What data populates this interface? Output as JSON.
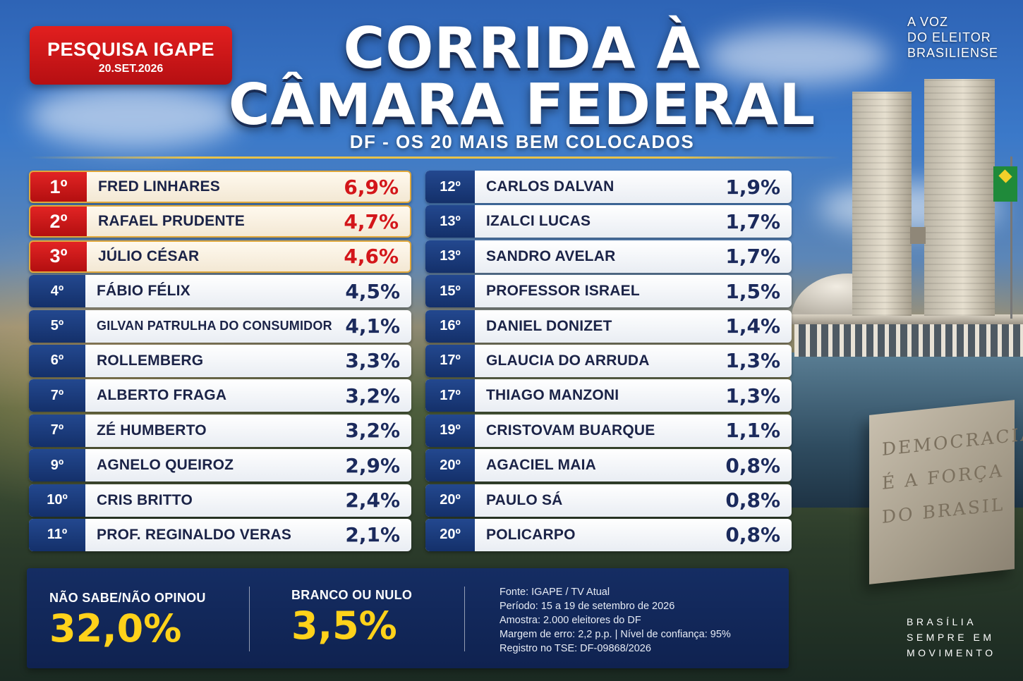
{
  "header": {
    "badge_title": "PESQUISA IGAPE",
    "badge_date": "20.SET.2026",
    "title_line1": "CORRIDA À",
    "title_line2": "CÂMARA FEDERAL",
    "subtitle": "DF - OS 20 MAIS BEM COLOCADOS",
    "slogan_lines": [
      "A VOZ",
      "DO ELEITOR",
      "BRASILIENSE"
    ]
  },
  "ranking_left": [
    {
      "rank": "1º",
      "name": "FRED LINHARES",
      "pct": "6,9%"
    },
    {
      "rank": "2º",
      "name": "RAFAEL PRUDENTE",
      "pct": "4,7%"
    },
    {
      "rank": "3º",
      "name": "JÚLIO CÉSAR",
      "pct": "4,6%"
    },
    {
      "rank": "4º",
      "name": "FÁBIO FÉLIX",
      "pct": "4,5%"
    },
    {
      "rank": "5º",
      "name": "GILVAN PATRULHA DO CONSUMIDOR",
      "pct": "4,1%"
    },
    {
      "rank": "6º",
      "name": "ROLLEMBERG",
      "pct": "3,3%"
    },
    {
      "rank": "7º",
      "name": "ALBERTO FRAGA",
      "pct": "3,2%"
    },
    {
      "rank": "7º",
      "name": "ZÉ HUMBERTO",
      "pct": "3,2%"
    },
    {
      "rank": "9º",
      "name": "AGNELO QUEIROZ",
      "pct": "2,9%"
    },
    {
      "rank": "10º",
      "name": "CRIS BRITTO",
      "pct": "2,4%"
    },
    {
      "rank": "11º",
      "name": "PROF. REGINALDO VERAS",
      "pct": "2,1%"
    }
  ],
  "ranking_right": [
    {
      "rank": "12º",
      "name": "CARLOS DALVAN",
      "pct": "1,9%"
    },
    {
      "rank": "13º",
      "name": "IZALCI LUCAS",
      "pct": "1,7%"
    },
    {
      "rank": "13º",
      "name": "SANDRO AVELAR",
      "pct": "1,7%"
    },
    {
      "rank": "15º",
      "name": "PROFESSOR ISRAEL",
      "pct": "1,5%"
    },
    {
      "rank": "16º",
      "name": "DANIEL DONIZET",
      "pct": "1,4%"
    },
    {
      "rank": "17º",
      "name": "GLAUCIA DO ARRUDA",
      "pct": "1,3%"
    },
    {
      "rank": "17º",
      "name": "THIAGO MANZONI",
      "pct": "1,3%"
    },
    {
      "rank": "19º",
      "name": "CRISTOVAM BUARQUE",
      "pct": "1,1%"
    },
    {
      "rank": "20º",
      "name": "AGACIEL MAIA",
      "pct": "0,8%"
    },
    {
      "rank": "20º",
      "name": "PAULO SÁ",
      "pct": "0,8%"
    },
    {
      "rank": "20º",
      "name": "POLICARPO",
      "pct": "0,8%"
    }
  ],
  "footer": {
    "undecided_label": "NÃO SABE/NÃO OPINOU",
    "undecided_value": "32,0%",
    "blank_label": "BRANCO OU NULO",
    "blank_value": "3,5%",
    "info": [
      "Fonte: IGAPE / TV Atual",
      "Período: 15 a 19 de setembro de 2026",
      "Amostra: 2.000 eleitores do DF",
      "Margem de erro: 2,2 p.p. | Nível de confiança: 95%",
      "Registro no TSE: DF-09868/2026"
    ],
    "slogan_lines": [
      "BRASÍLIA",
      "SEMPRE EM",
      "MOVIMENTO"
    ]
  },
  "monument_text": [
    "DEMOCRACIA",
    "É A FORÇA",
    "DO BRASIL"
  ],
  "colors": {
    "accent_red": "#d3161a",
    "navy": "#14306a",
    "gold": "#ffd21a"
  }
}
